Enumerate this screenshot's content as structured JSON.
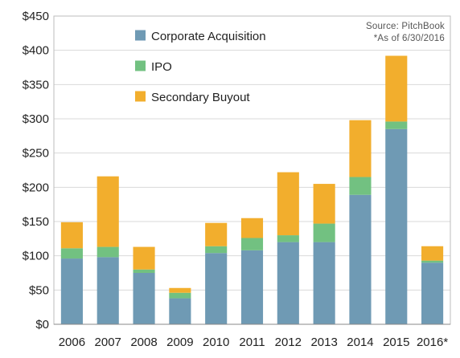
{
  "chart_data": {
    "type": "bar",
    "stacked": true,
    "categories": [
      "2006",
      "2007",
      "2008",
      "2009",
      "2010",
      "2011",
      "2012",
      "2013",
      "2014",
      "2015",
      "2016*"
    ],
    "series": [
      {
        "name": "Corporate Acquisition",
        "color": "#6f9ab4",
        "values": [
          96,
          98,
          75,
          38,
          104,
          108,
          120,
          120,
          189,
          285,
          90
        ]
      },
      {
        "name": "IPO",
        "color": "#72c181",
        "values": [
          15,
          15,
          5,
          8,
          10,
          18,
          10,
          27,
          26,
          11,
          3
        ]
      },
      {
        "name": "Secondary Buyout",
        "color": "#f2ae2d",
        "values": [
          38,
          103,
          33,
          7,
          34,
          29,
          92,
          58,
          83,
          96,
          21
        ]
      }
    ],
    "ylim": [
      0,
      450
    ],
    "yticks": [
      0,
      50,
      100,
      150,
      200,
      250,
      300,
      350,
      400,
      450
    ],
    "ytick_labels": [
      "$0",
      "$50",
      "$100",
      "$150",
      "$200",
      "$250",
      "$300",
      "$350",
      "$400",
      "$450"
    ],
    "grid": true,
    "legend_position": "top-left",
    "annotations": [
      "Source: PitchBook",
      "*As of 6/30/2016"
    ]
  }
}
